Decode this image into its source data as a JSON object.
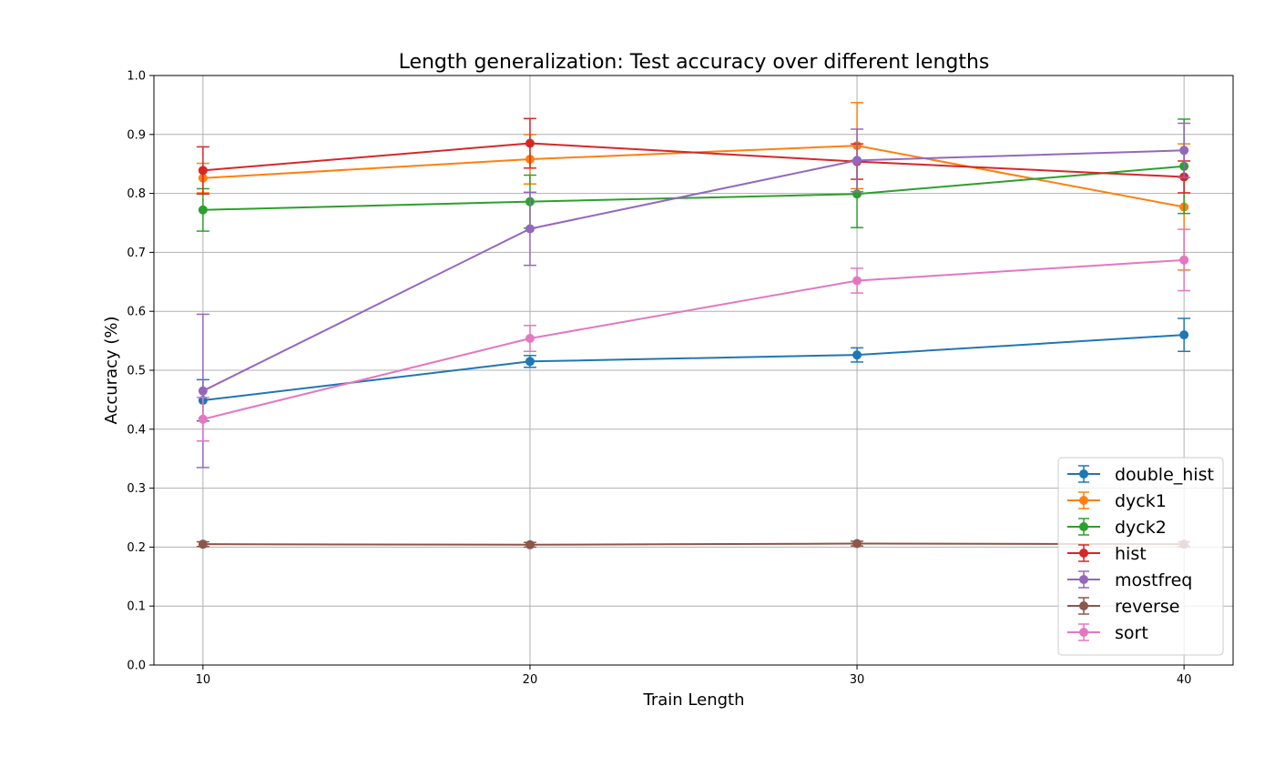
{
  "chart_data": {
    "type": "line",
    "title": "Length generalization: Test accuracy over different lengths",
    "xlabel": "Train Length",
    "ylabel": "Accuracy (%)",
    "x": [
      10,
      20,
      30,
      40
    ],
    "xlim": [
      8.5,
      41.5
    ],
    "ylim": [
      0.0,
      1.0
    ],
    "xticks": [
      "10",
      "20",
      "30",
      "40"
    ],
    "yticks": [
      "0.0",
      "0.1",
      "0.2",
      "0.3",
      "0.4",
      "0.5",
      "0.6",
      "0.7",
      "0.8",
      "0.9",
      "1.0"
    ],
    "grid": true,
    "legend_position": "lower-right",
    "series": [
      {
        "name": "double_hist",
        "color": "#1f77b4",
        "values": [
          0.449,
          0.515,
          0.526,
          0.56
        ],
        "errors": [
          0.035,
          0.01,
          0.012,
          0.028
        ]
      },
      {
        "name": "dyck1",
        "color": "#ff7f0e",
        "values": [
          0.826,
          0.858,
          0.881,
          0.777
        ],
        "errors": [
          0.025,
          0.042,
          0.073,
          0.107
        ]
      },
      {
        "name": "dyck2",
        "color": "#2ca02c",
        "values": [
          0.772,
          0.786,
          0.799,
          0.846
        ],
        "errors": [
          0.036,
          0.045,
          0.057,
          0.08
        ]
      },
      {
        "name": "hist",
        "color": "#d62728",
        "values": [
          0.839,
          0.885,
          0.854,
          0.828
        ],
        "errors": [
          0.04,
          0.042,
          0.03,
          0.027
        ]
      },
      {
        "name": "mostfreq",
        "color": "#9467bd",
        "values": [
          0.465,
          0.74,
          0.856,
          0.873
        ],
        "errors": [
          0.13,
          0.062,
          0.053,
          0.046
        ]
      },
      {
        "name": "reverse",
        "color": "#8c564b",
        "values": [
          0.205,
          0.204,
          0.206,
          0.205
        ],
        "errors": [
          0.004,
          0.004,
          0.004,
          0.004
        ]
      },
      {
        "name": "sort",
        "color": "#e377c2",
        "values": [
          0.417,
          0.554,
          0.652,
          0.687
        ],
        "errors": [
          0.037,
          0.022,
          0.021,
          0.052
        ]
      }
    ]
  }
}
